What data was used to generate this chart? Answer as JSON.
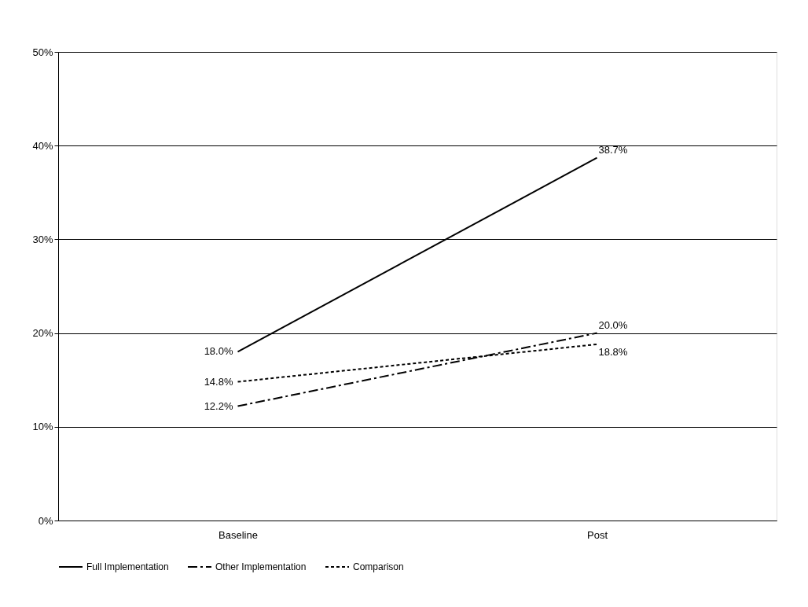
{
  "chart_data": {
    "type": "line",
    "categories": [
      "Baseline",
      "Post"
    ],
    "series": [
      {
        "name": "Full Implementation",
        "color": "#000000",
        "line_style": "solid",
        "values": [
          18.0,
          38.7
        ],
        "value_labels": [
          "18.0%",
          "38.7%"
        ]
      },
      {
        "name": "Other Implementation",
        "color": "#000000",
        "line_style": "dashed",
        "values": [
          12.2,
          20.0
        ],
        "value_labels": [
          "12.2%",
          "20.0%"
        ]
      },
      {
        "name": "Comparison",
        "color": "#000000",
        "line_style": "dotted",
        "values": [
          14.8,
          18.8
        ],
        "value_labels": [
          "14.8%",
          "18.8%"
        ]
      }
    ],
    "ylim": [
      0,
      50
    ],
    "yticks": [
      {
        "value": 0,
        "label": "0%"
      },
      {
        "value": 10,
        "label": "10%"
      },
      {
        "value": 20,
        "label": "20%"
      },
      {
        "value": 30,
        "label": "30%"
      },
      {
        "value": 40,
        "label": "40%"
      },
      {
        "value": 50,
        "label": "50%"
      }
    ],
    "grid": "y",
    "legend": "bottom",
    "marker": "none"
  }
}
